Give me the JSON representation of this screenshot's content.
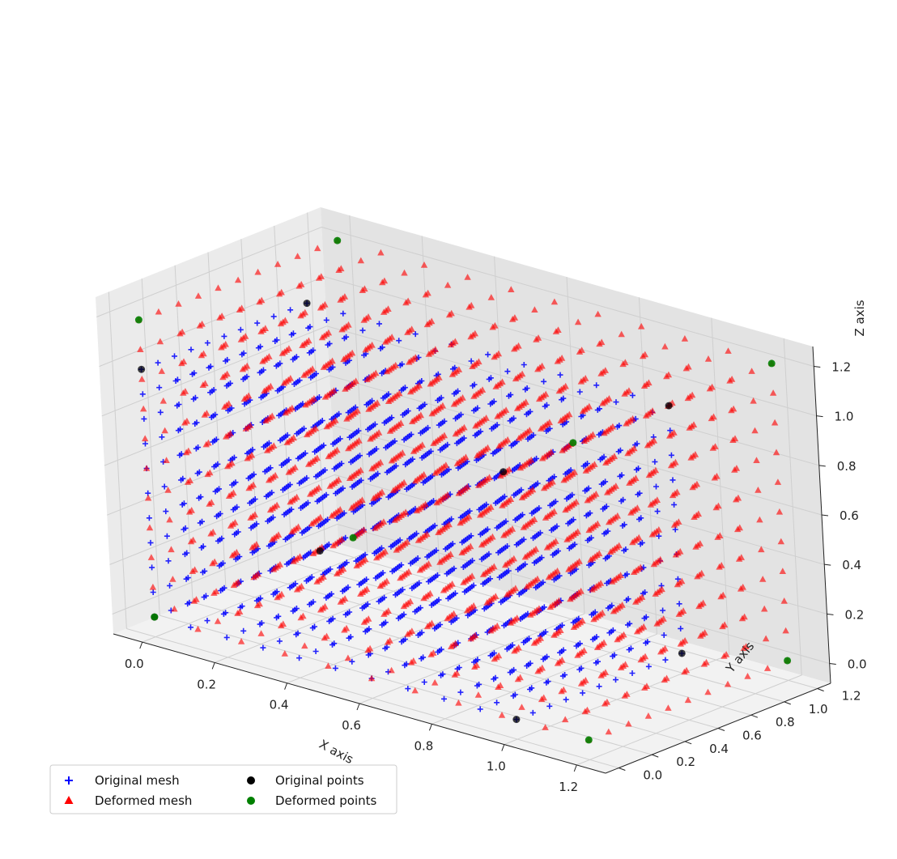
{
  "chart_data": {
    "type": "scatter",
    "projection": "3d",
    "xlabel": "X axis",
    "ylabel": "Y axis",
    "zlabel": "Z axis",
    "xlim": [
      -0.08,
      1.28
    ],
    "ylim": [
      -0.08,
      1.28
    ],
    "zlim": [
      -0.08,
      1.28
    ],
    "xticks": [
      "0.0",
      "0.2",
      "0.4",
      "0.6",
      "0.8",
      "1.0",
      "1.2"
    ],
    "yticks": [
      "0.0",
      "0.2",
      "0.4",
      "0.6",
      "0.8",
      "1.0",
      "1.2"
    ],
    "zticks": [
      "0.0",
      "0.2",
      "0.4",
      "0.6",
      "0.8",
      "1.0",
      "1.2"
    ],
    "grid": true,
    "legend_position": "lower-left",
    "mesh": {
      "original": {
        "min": 0.0,
        "max": 1.0,
        "steps": 11
      },
      "deformed": {
        "min": 0.0,
        "max": 1.2,
        "steps": 11
      }
    },
    "series": [
      {
        "name": "Original mesh",
        "marker": "plus",
        "color": "#0000ff"
      },
      {
        "name": "Deformed mesh",
        "marker": "triangle",
        "color": "#ff0000"
      },
      {
        "name": "Original points",
        "marker": "circle",
        "color": "#000000",
        "points": [
          [
            0,
            0,
            0
          ],
          [
            1,
            0,
            0
          ],
          [
            0,
            1,
            0
          ],
          [
            0,
            0,
            1
          ],
          [
            1,
            1,
            0
          ],
          [
            1,
            0,
            1
          ],
          [
            0,
            1,
            1
          ],
          [
            1,
            1,
            1
          ]
        ]
      },
      {
        "name": "Deformed points",
        "marker": "circle",
        "color": "#008000",
        "points": [
          [
            0,
            0,
            0
          ],
          [
            1.2,
            0,
            0
          ],
          [
            0,
            1.2,
            0
          ],
          [
            0,
            0,
            1.2
          ],
          [
            1.2,
            1.2,
            0
          ],
          [
            1.2,
            0,
            1.2
          ],
          [
            0,
            1.2,
            1.2
          ],
          [
            1.2,
            1.2,
            1.2
          ]
        ]
      }
    ]
  },
  "legend": {
    "items": [
      {
        "label": "Original mesh",
        "marker": "plus",
        "color": "#0000ff"
      },
      {
        "label": "Deformed mesh",
        "marker": "triangle",
        "color": "#ff0000"
      },
      {
        "label": "Original points",
        "marker": "circle",
        "color": "#000000"
      },
      {
        "label": "Deformed points",
        "marker": "circle",
        "color": "#008000"
      }
    ]
  },
  "colors": {
    "pane_left": "#ebebeb",
    "pane_right": "#e3e3e3",
    "pane_floor": "#f2f2f2",
    "grid": "#cfcfcf"
  }
}
